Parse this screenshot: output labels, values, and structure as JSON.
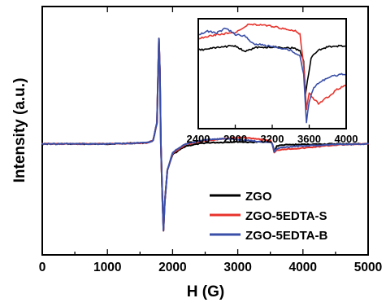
{
  "chart_data": [
    {
      "type": "line",
      "xlabel": "H (G)",
      "ylabel": "Intensity (a.u.)",
      "xlim": [
        0,
        5000
      ],
      "ylim": [
        -1.05,
        1.3
      ],
      "xticks": [
        0,
        1000,
        2000,
        3000,
        4000,
        5000
      ],
      "yticks_shown": false,
      "legend_position": "bottom-right",
      "series": [
        {
          "name": "ZGO",
          "color": "#000000",
          "points": [
            [
              0,
              0
            ],
            [
              1000,
              0
            ],
            [
              1600,
              0.01
            ],
            [
              1700,
              0.03
            ],
            [
              1760,
              0.2
            ],
            [
              1790,
              1.0
            ],
            [
              1805,
              0.7
            ],
            [
              1820,
              0.0
            ],
            [
              1845,
              -0.55
            ],
            [
              1860,
              -0.82
            ],
            [
              1880,
              -0.55
            ],
            [
              1920,
              -0.25
            ],
            [
              2000,
              -0.1
            ],
            [
              2200,
              -0.02
            ],
            [
              2500,
              0.01
            ],
            [
              2800,
              0.015
            ],
            [
              3000,
              0.02
            ],
            [
              3200,
              0.015
            ],
            [
              3400,
              0.02
            ],
            [
              3500,
              0.025
            ],
            [
              3530,
              0.0
            ],
            [
              3560,
              -0.07
            ],
            [
              3600,
              -0.02
            ],
            [
              3700,
              -0.01
            ],
            [
              4000,
              -0.005
            ],
            [
              4500,
              0
            ],
            [
              5000,
              0
            ]
          ]
        },
        {
          "name": "ZGO-5EDTA-S",
          "color": "#e8332c",
          "points": [
            [
              0,
              0
            ],
            [
              1000,
              0
            ],
            [
              1600,
              0.01
            ],
            [
              1700,
              0.03
            ],
            [
              1760,
              0.2
            ],
            [
              1790,
              1.0
            ],
            [
              1805,
              0.7
            ],
            [
              1820,
              0.0
            ],
            [
              1845,
              -0.55
            ],
            [
              1860,
              -0.82
            ],
            [
              1880,
              -0.55
            ],
            [
              1920,
              -0.25
            ],
            [
              2000,
              -0.09
            ],
            [
              2200,
              -0.005
            ],
            [
              2500,
              0.03
            ],
            [
              2800,
              0.05
            ],
            [
              3000,
              0.06
            ],
            [
              3200,
              0.055
            ],
            [
              3400,
              0.04
            ],
            [
              3500,
              0.03
            ],
            [
              3530,
              0.0
            ],
            [
              3560,
              -0.085
            ],
            [
              3600,
              -0.06
            ],
            [
              3700,
              -0.05
            ],
            [
              4000,
              -0.04
            ],
            [
              4500,
              -0.01
            ],
            [
              5000,
              0
            ]
          ]
        },
        {
          "name": "ZGO-5EDTA-B",
          "color": "#3a4fa8",
          "points": [
            [
              0,
              0
            ],
            [
              1000,
              0
            ],
            [
              1600,
              0.01
            ],
            [
              1700,
              0.03
            ],
            [
              1760,
              0.2
            ],
            [
              1790,
              1.0
            ],
            [
              1805,
              0.7
            ],
            [
              1820,
              0.0
            ],
            [
              1845,
              -0.55
            ],
            [
              1860,
              -0.82
            ],
            [
              1880,
              -0.55
            ],
            [
              1920,
              -0.25
            ],
            [
              2000,
              -0.08
            ],
            [
              2200,
              0.0
            ],
            [
              2500,
              0.04
            ],
            [
              2800,
              0.05
            ],
            [
              3000,
              0.04
            ],
            [
              3200,
              0.03
            ],
            [
              3400,
              0.02
            ],
            [
              3500,
              0.015
            ],
            [
              3530,
              0.0
            ],
            [
              3560,
              -0.075
            ],
            [
              3600,
              -0.045
            ],
            [
              3700,
              -0.03
            ],
            [
              4000,
              -0.02
            ],
            [
              4500,
              -0.005
            ],
            [
              5000,
              0
            ]
          ]
        }
      ]
    },
    {
      "type": "line",
      "inset": true,
      "xlim": [
        2400,
        4000
      ],
      "xticks": [
        2400,
        2800,
        3200,
        3600,
        4000
      ],
      "ylim": [
        -1.0,
        0.4
      ],
      "series": [
        {
          "name": "ZGO",
          "color": "#000000",
          "points": [
            [
              2400,
              0.0
            ],
            [
              2600,
              0.03
            ],
            [
              2800,
              0.06
            ],
            [
              2900,
              -0.02
            ],
            [
              2950,
              0.0
            ],
            [
              3000,
              0.03
            ],
            [
              3200,
              0.04
            ],
            [
              3400,
              0.03
            ],
            [
              3500,
              0.0
            ],
            [
              3540,
              -0.15
            ],
            [
              3560,
              -0.55
            ],
            [
              3580,
              -0.4
            ],
            [
              3620,
              -0.1
            ],
            [
              3700,
              0.0
            ],
            [
              3800,
              0.04
            ],
            [
              4000,
              0.06
            ]
          ]
        },
        {
          "name": "ZGO-5EDTA-S",
          "color": "#e8332c",
          "points": [
            [
              2400,
              0.15
            ],
            [
              2600,
              0.2
            ],
            [
              2800,
              0.22
            ],
            [
              2950,
              0.33
            ],
            [
              3100,
              0.32
            ],
            [
              3300,
              0.28
            ],
            [
              3450,
              0.25
            ],
            [
              3500,
              0.2
            ],
            [
              3540,
              -0.2
            ],
            [
              3570,
              -0.75
            ],
            [
              3600,
              -0.55
            ],
            [
              3650,
              -0.62
            ],
            [
              3700,
              -0.68
            ],
            [
              3800,
              -0.6
            ],
            [
              3900,
              -0.5
            ],
            [
              4000,
              -0.45
            ]
          ]
        },
        {
          "name": "ZGO-5EDTA-B",
          "color": "#3a4fa8",
          "points": [
            [
              2400,
              0.2
            ],
            [
              2500,
              0.24
            ],
            [
              2600,
              0.22
            ],
            [
              2700,
              0.28
            ],
            [
              2800,
              0.2
            ],
            [
              2900,
              0.18
            ],
            [
              3000,
              0.08
            ],
            [
              3200,
              0.05
            ],
            [
              3400,
              0.0
            ],
            [
              3500,
              -0.08
            ],
            [
              3540,
              -0.3
            ],
            [
              3570,
              -0.92
            ],
            [
              3600,
              -0.65
            ],
            [
              3650,
              -0.48
            ],
            [
              3700,
              -0.42
            ],
            [
              3800,
              -0.35
            ],
            [
              3900,
              -0.32
            ],
            [
              4000,
              -0.3
            ]
          ]
        }
      ]
    }
  ]
}
